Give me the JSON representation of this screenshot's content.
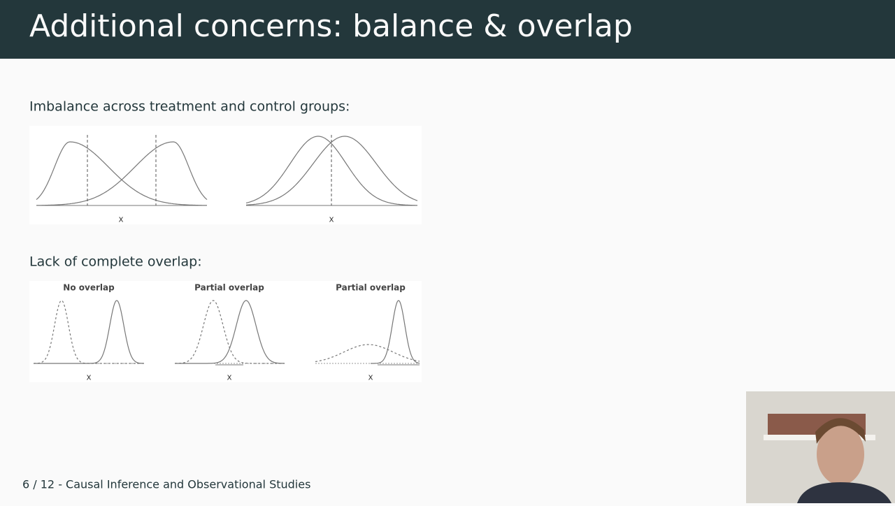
{
  "header": {
    "title": "Additional concerns: balance & overlap"
  },
  "sections": [
    {
      "heading": "Imbalance across treatment and control groups:",
      "figure": {
        "axis_labels": [
          "x",
          "x"
        ]
      }
    },
    {
      "heading": "Lack of complete overlap:",
      "figure": {
        "panel_titles": [
          "No overlap",
          "Partial overlap",
          "Partial overlap"
        ],
        "axis_labels": [
          "x",
          "x",
          "x"
        ]
      }
    }
  ],
  "footer": {
    "text": "6 / 12 - Causal Inference and Observational Studies"
  }
}
